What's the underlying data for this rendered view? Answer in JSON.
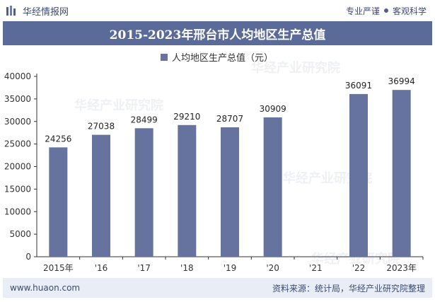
{
  "header": {
    "brand": "华经情报网",
    "tags": [
      "专业严谨",
      "客观科学"
    ]
  },
  "footer": {
    "url": "www.huaon.com",
    "source": "资料来源：统计局，华经产业研究院整理"
  },
  "watermarks": [
    "华经产业研究院",
    "华经产业研究院",
    "华经产业研究院",
    "华经产业研究院"
  ],
  "colors": {
    "bar": "#66739f",
    "title_bg": "#5b6b99",
    "footer_bg": "#e9edf5",
    "text": "#3b4a74"
  },
  "chart_data": {
    "type": "bar",
    "title": "2015-2023年邢台市人均地区生产总值",
    "legend": {
      "label": "人均地区生产总值（元）",
      "position": "top-center"
    },
    "categories": [
      "2015年",
      "'16",
      "'17",
      "'18",
      "'19",
      "'20",
      "'21",
      "'22",
      "2023年"
    ],
    "values": [
      24256,
      27038,
      28499,
      29210,
      28707,
      30909,
      null,
      36091,
      36994
    ],
    "data_labels": [
      "24256",
      "27038",
      "28499",
      "29210",
      "28707",
      "30909",
      "",
      "36091",
      "36994"
    ],
    "ylim": [
      0,
      40000
    ],
    "yticks": [
      0,
      5000,
      10000,
      15000,
      20000,
      25000,
      30000,
      35000,
      40000
    ],
    "grid": false
  }
}
